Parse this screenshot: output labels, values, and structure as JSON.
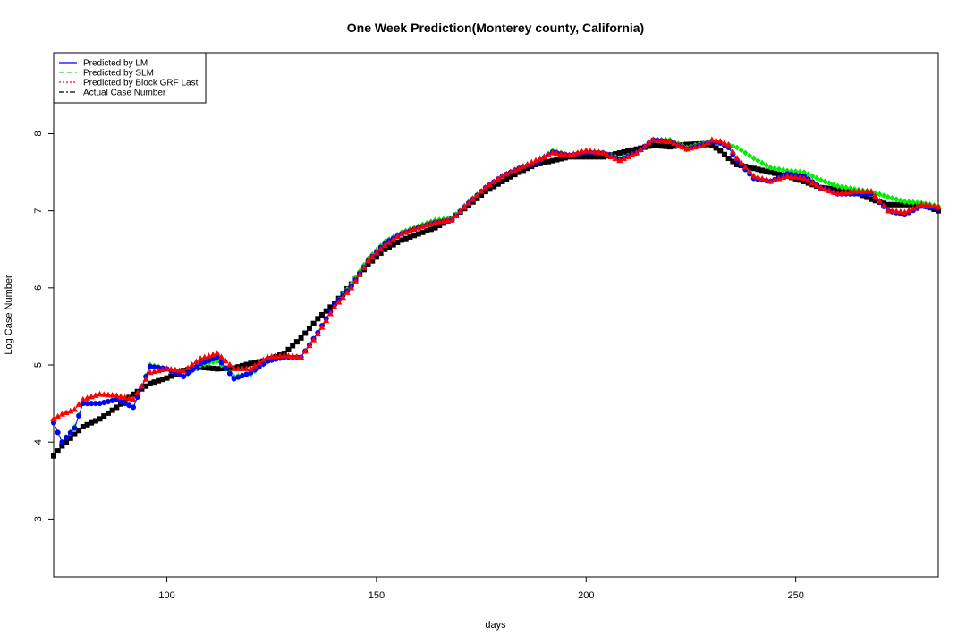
{
  "chart_data": {
    "type": "line",
    "title": "One Week Prediction(Monterey county, California)",
    "xlabel": "days",
    "ylabel": "Log Case Number",
    "xlim": [
      73,
      284
    ],
    "ylim": [
      2.25,
      9.05
    ],
    "xticks": [
      "100",
      "150",
      "200",
      "250"
    ],
    "yticks": [
      "3",
      "4",
      "5",
      "6",
      "7",
      "8"
    ],
    "legend_position": "top-left",
    "grid": false,
    "colors": {
      "lm": "#0000ff",
      "slm": "#00ee00",
      "grf": "#ff0000",
      "actual": "#000000"
    },
    "anchors": {
      "x": [
        73,
        75,
        78,
        80,
        84,
        88,
        92,
        96,
        100,
        104,
        108,
        112,
        116,
        120,
        124,
        128,
        132,
        136,
        140,
        144,
        148,
        152,
        156,
        160,
        164,
        168,
        172,
        176,
        180,
        184,
        188,
        192,
        196,
        200,
        204,
        208,
        212,
        216,
        220,
        224,
        228,
        230,
        232,
        234,
        236,
        240,
        244,
        248,
        252,
        256,
        260,
        264,
        268,
        272,
        276,
        280,
        284
      ],
      "actual": [
        3.82,
        3.95,
        4.1,
        4.2,
        4.3,
        4.45,
        4.62,
        4.76,
        4.83,
        4.93,
        4.97,
        4.95,
        4.96,
        5.02,
        5.06,
        5.15,
        5.35,
        5.6,
        5.8,
        6.05,
        6.3,
        6.5,
        6.62,
        6.7,
        6.78,
        6.9,
        7.07,
        7.25,
        7.38,
        7.5,
        7.6,
        7.65,
        7.7,
        7.7,
        7.7,
        7.75,
        7.8,
        7.85,
        7.83,
        7.86,
        7.87,
        7.85,
        7.78,
        7.68,
        7.6,
        7.55,
        7.5,
        7.45,
        7.38,
        7.3,
        7.28,
        7.25,
        7.15,
        7.08,
        7.08,
        7.08,
        7.0
      ],
      "grf": [
        4.3,
        4.36,
        4.42,
        4.55,
        4.62,
        4.6,
        4.55,
        4.9,
        4.95,
        4.92,
        5.08,
        5.15,
        4.95,
        4.95,
        5.1,
        5.12,
        5.1,
        5.4,
        5.75,
        6.0,
        6.35,
        6.55,
        6.7,
        6.78,
        6.85,
        6.88,
        7.1,
        7.3,
        7.45,
        7.55,
        7.65,
        7.75,
        7.72,
        7.78,
        7.75,
        7.65,
        7.75,
        7.92,
        7.9,
        7.8,
        7.85,
        7.92,
        7.9,
        7.85,
        7.68,
        7.45,
        7.38,
        7.45,
        7.42,
        7.3,
        7.22,
        7.25,
        7.25,
        7.0,
        6.98,
        7.08,
        7.05
      ],
      "slm": [
        4.25,
        4.0,
        4.2,
        4.5,
        4.5,
        4.55,
        4.45,
        5.0,
        4.95,
        4.85,
        5.0,
        5.05,
        4.85,
        4.88,
        5.05,
        5.1,
        5.1,
        5.42,
        5.78,
        6.05,
        6.38,
        6.6,
        6.72,
        6.8,
        6.88,
        6.9,
        7.12,
        7.3,
        7.45,
        7.56,
        7.62,
        7.78,
        7.72,
        7.76,
        7.75,
        7.68,
        7.75,
        7.92,
        7.92,
        7.82,
        7.88,
        7.9,
        7.88,
        7.86,
        7.82,
        7.68,
        7.56,
        7.52,
        7.5,
        7.4,
        7.32,
        7.28,
        7.25,
        7.18,
        7.12,
        7.1,
        7.06
      ],
      "lm": [
        4.25,
        4.0,
        4.18,
        4.5,
        4.5,
        4.55,
        4.45,
        4.98,
        4.95,
        4.85,
        5.02,
        5.1,
        4.82,
        4.9,
        5.05,
        5.1,
        5.1,
        5.42,
        5.78,
        6.02,
        6.35,
        6.58,
        6.7,
        6.78,
        6.85,
        6.88,
        7.1,
        7.3,
        7.45,
        7.55,
        7.62,
        7.76,
        7.72,
        7.76,
        7.75,
        7.66,
        7.75,
        7.92,
        7.9,
        7.8,
        7.86,
        7.9,
        7.88,
        7.82,
        7.65,
        7.42,
        7.38,
        7.48,
        7.45,
        7.3,
        7.22,
        7.22,
        7.22,
        7.0,
        6.95,
        7.06,
        7.03
      ]
    },
    "series": [
      {
        "key": "lm",
        "name": "Predicted by LM",
        "color": "#0000ff",
        "line_style": "solid",
        "marker": "circle"
      },
      {
        "key": "slm",
        "name": "Predicted by SLM",
        "color": "#00ee00",
        "line_style": "dashed",
        "marker": "diamond"
      },
      {
        "key": "grf",
        "name": "Predicted by Block GRF Last",
        "color": "#ff0000",
        "line_style": "dotted",
        "marker": "triangle"
      },
      {
        "key": "actual",
        "name": "Actual Case Number",
        "color": "#000000",
        "line_style": "dashdot",
        "marker": "square"
      }
    ]
  }
}
